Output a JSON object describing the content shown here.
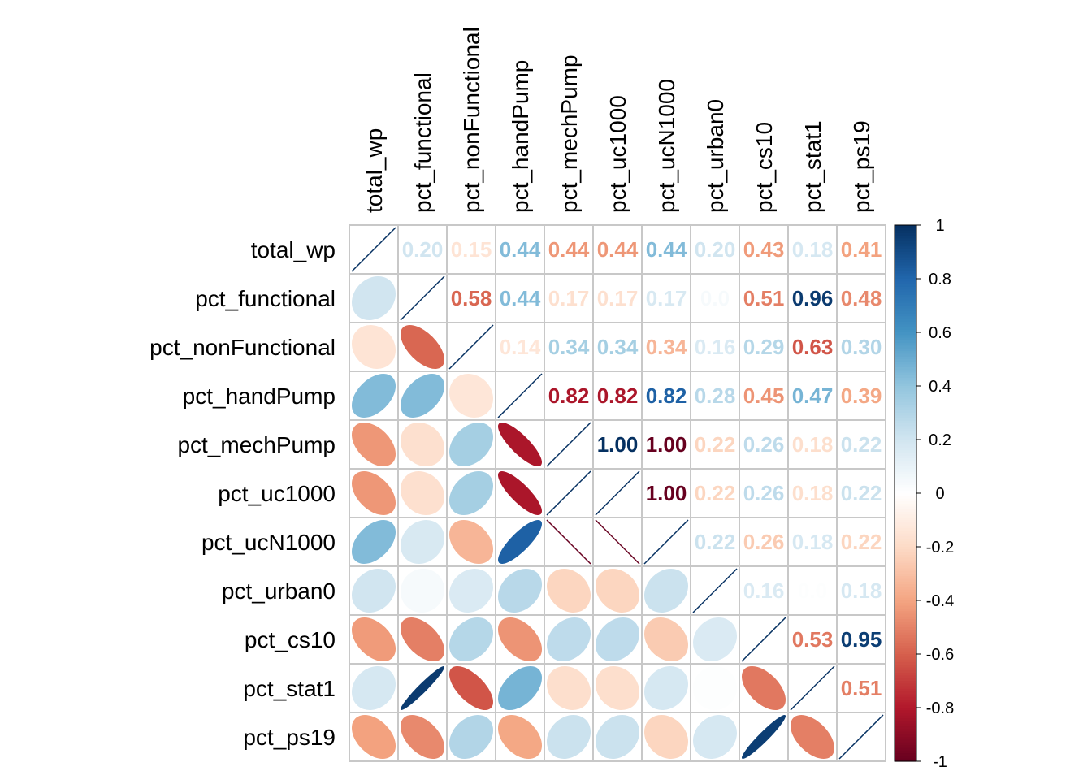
{
  "chart_data": {
    "type": "heatmap",
    "variables": [
      "total_wp",
      "pct_functional",
      "pct_nonFunctional",
      "pct_handPump",
      "pct_mechPump",
      "pct_uc1000",
      "pct_ucN1000",
      "pct_urban0",
      "pct_cs10",
      "pct_stat1",
      "pct_ps19"
    ],
    "matrix": [
      [
        1.0,
        0.2,
        -0.15,
        0.44,
        -0.44,
        -0.44,
        0.44,
        0.2,
        -0.43,
        0.18,
        -0.41
      ],
      [
        0.2,
        1.0,
        -0.58,
        0.44,
        -0.17,
        -0.17,
        0.17,
        0.04,
        -0.51,
        0.96,
        -0.48
      ],
      [
        -0.15,
        -0.58,
        1.0,
        -0.14,
        0.34,
        0.34,
        -0.34,
        0.16,
        0.29,
        -0.63,
        0.3
      ],
      [
        0.44,
        0.44,
        -0.14,
        1.0,
        -0.82,
        -0.82,
        0.82,
        0.28,
        -0.45,
        0.47,
        -0.39
      ],
      [
        -0.44,
        -0.17,
        0.34,
        -0.82,
        1.0,
        1.0,
        -1.0,
        -0.22,
        0.26,
        -0.18,
        0.22
      ],
      [
        -0.44,
        -0.17,
        0.34,
        -0.82,
        1.0,
        1.0,
        -1.0,
        -0.22,
        0.26,
        -0.18,
        0.22
      ],
      [
        0.44,
        0.17,
        -0.34,
        0.82,
        -1.0,
        -1.0,
        1.0,
        0.22,
        -0.26,
        0.18,
        -0.22
      ],
      [
        0.2,
        0.04,
        0.16,
        0.28,
        -0.22,
        -0.22,
        0.22,
        1.0,
        0.16,
        0.01,
        0.18
      ],
      [
        -0.43,
        -0.51,
        0.29,
        -0.45,
        0.26,
        0.26,
        -0.26,
        0.16,
        1.0,
        -0.53,
        0.95
      ],
      [
        0.18,
        0.96,
        -0.63,
        0.47,
        -0.18,
        -0.18,
        0.18,
        0.01,
        -0.53,
        1.0,
        -0.51
      ],
      [
        -0.41,
        -0.48,
        0.3,
        -0.39,
        0.22,
        0.22,
        -0.22,
        0.18,
        0.95,
        -0.51,
        1.0
      ]
    ],
    "upper_labels": [
      [
        "",
        "0.20",
        "0.15",
        "0.44",
        "0.44",
        "0.44",
        "0.44",
        "0.20",
        "0.43",
        "0.18",
        "0.41"
      ],
      [
        "",
        "",
        "0.58",
        "0.44",
        "0.17",
        "0.17",
        "0.17",
        "0.0",
        "0.51",
        "0.96",
        "0.48"
      ],
      [
        "",
        "",
        "",
        "0.14",
        "0.34",
        "0.34",
        "0.34",
        "0.16",
        "0.29",
        "0.63",
        "0.30"
      ],
      [
        "",
        "",
        "",
        "",
        "0.82",
        "0.82",
        "0.82",
        "0.28",
        "0.45",
        "0.47",
        "0.39"
      ],
      [
        "",
        "",
        "",
        "",
        "",
        "1.00",
        "1.00",
        "0.22",
        "0.26",
        "0.18",
        "0.22"
      ],
      [
        "",
        "",
        "",
        "",
        "",
        "",
        "1.00",
        "0.22",
        "0.26",
        "0.18",
        "0.22"
      ],
      [
        "",
        "",
        "",
        "",
        "",
        "",
        "",
        "0.22",
        "0.26",
        "0.18",
        "0.22"
      ],
      [
        "",
        "",
        "",
        "",
        "",
        "",
        "",
        "",
        "0.16",
        "0.0",
        "0.18"
      ],
      [
        "",
        "",
        "",
        "",
        "",
        "",
        "",
        "",
        "",
        "0.53",
        "0.95"
      ],
      [
        "",
        "",
        "",
        "",
        "",
        "",
        "",
        "",
        "",
        "",
        "0.51"
      ],
      [
        "",
        "",
        "",
        "",
        "",
        "",
        "",
        "",
        "",
        "",
        ""
      ]
    ],
    "lower_glyph": "ellipse",
    "upper_glyph": "number",
    "diagonal": "line",
    "color_scale": {
      "min": -1,
      "max": 1,
      "low": "#67001F",
      "mid": "#FFFFFF",
      "high": "#053061"
    },
    "colorbar_ticks": [
      "1",
      "0.8",
      "0.6",
      "0.4",
      "0.2",
      "0",
      "-0.2",
      "-0.4",
      "-0.6",
      "-0.8",
      "-1"
    ],
    "grid": true,
    "legend": "right"
  }
}
